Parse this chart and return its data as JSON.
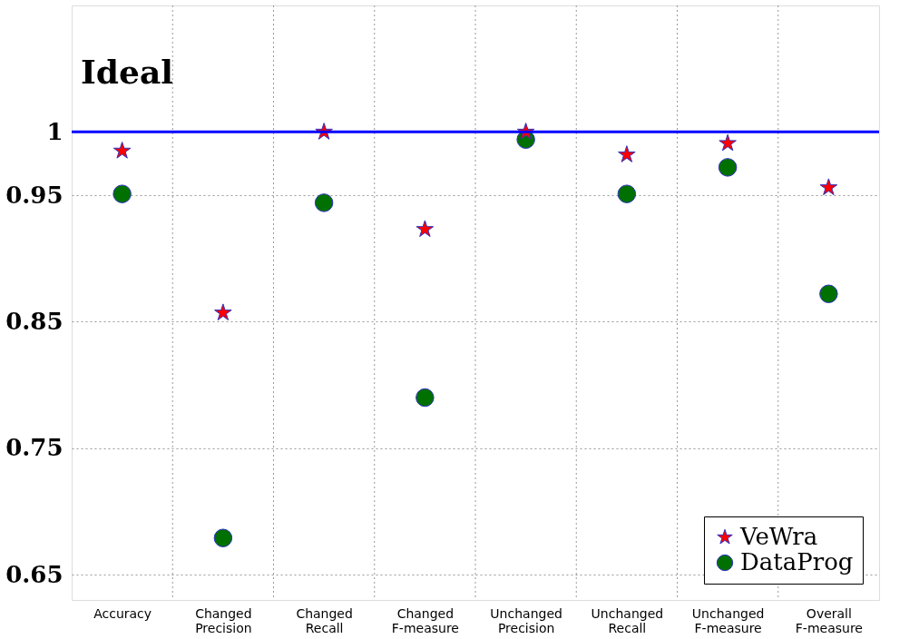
{
  "chart_data": {
    "type": "scatter",
    "categories": [
      "Accuracy",
      "Changed Precision",
      "Changed Recall",
      "Changed F-measure",
      "Unchanged Precision",
      "Unchanged Recall",
      "Unchanged F-measure",
      "Overall F-measure"
    ],
    "series": [
      {
        "name": "VeWra",
        "color": "#ff0000",
        "marker": "star",
        "values": [
          0.985,
          0.857,
          1.0,
          0.923,
          1.0,
          0.982,
          0.991,
          0.956
        ]
      },
      {
        "name": "DataProg",
        "color": "#007000",
        "marker": "circle",
        "values": [
          0.951,
          0.679,
          0.944,
          0.79,
          0.994,
          0.951,
          0.972,
          0.872
        ]
      }
    ],
    "ylim": [
      0.63,
      1.1
    ],
    "yticks": [
      0.65,
      0.75,
      0.85,
      0.95,
      1
    ],
    "ref_lines": [
      {
        "axis": "y",
        "value": 1,
        "label": "Ideal",
        "color": "#0000ff"
      }
    ],
    "grid": true,
    "legend": "bottom right"
  }
}
